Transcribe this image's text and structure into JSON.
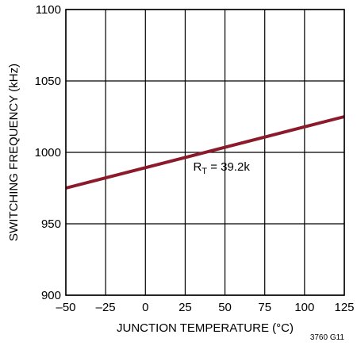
{
  "chart_data": {
    "type": "line",
    "title": "",
    "xlabel": "JUNCTION TEMPERATURE (°C)",
    "ylabel": "SWITCHING FREQUENCY (kHz)",
    "xlim": [
      -50,
      125
    ],
    "ylim": [
      900,
      1100
    ],
    "xticks": [
      -50,
      -25,
      0,
      25,
      50,
      75,
      100,
      125
    ],
    "xtick_labels": [
      "–50",
      "–25",
      "0",
      "25",
      "50",
      "75",
      "100",
      "125"
    ],
    "yticks": [
      900,
      950,
      1000,
      1050,
      1100
    ],
    "ytick_labels": [
      "900",
      "950",
      "1000",
      "1050",
      "1100"
    ],
    "grid": true,
    "series": [
      {
        "color": "#8b1a2b",
        "x": [
          -50,
          125
        ],
        "y": [
          975,
          1025
        ]
      }
    ],
    "annotation": {
      "prefix": "R",
      "subscript": "T",
      "suffix": " = 39.2k",
      "x": 30,
      "y": 990
    },
    "figure_id": "3760 G11"
  }
}
